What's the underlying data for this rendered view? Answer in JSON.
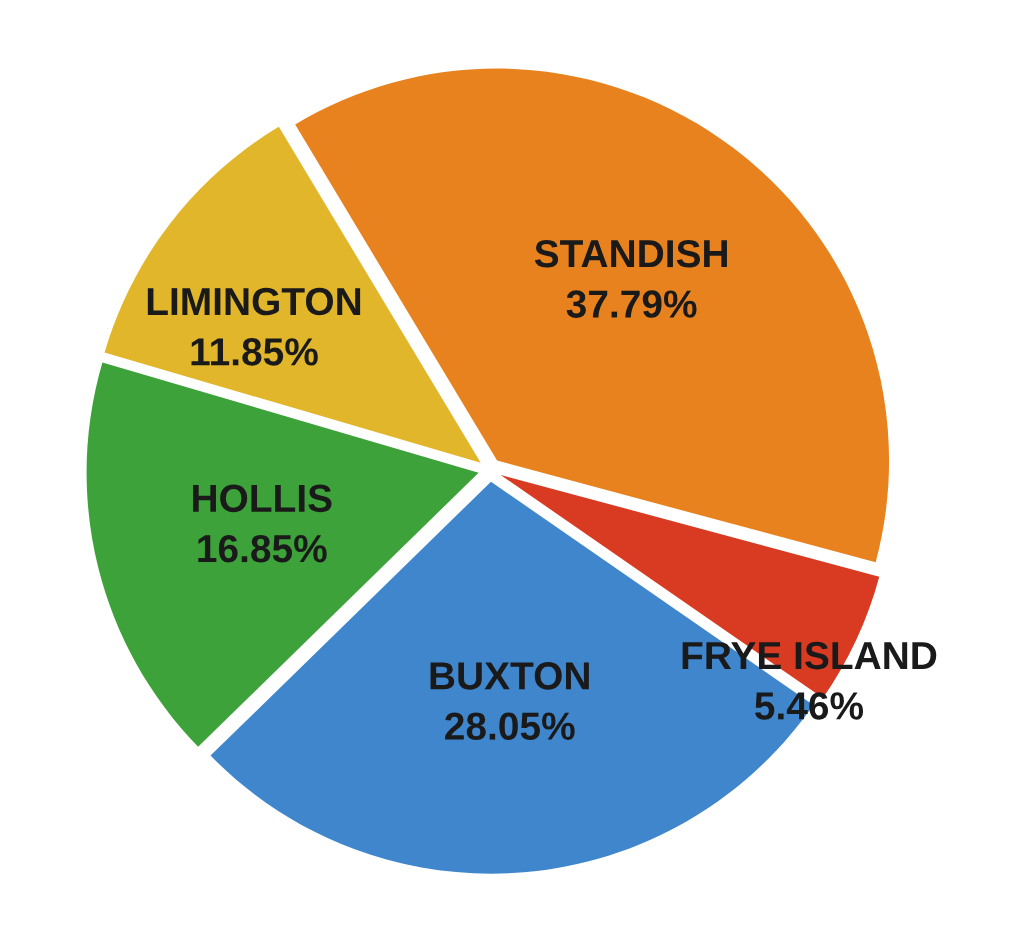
{
  "chart_data": {
    "type": "pie",
    "categories": [
      "STANDISH",
      "FRYE ISLAND",
      "BUXTON",
      "HOLLIS",
      "LIMINGTON"
    ],
    "values": [
      37.79,
      5.46,
      28.05,
      16.85,
      11.85
    ],
    "value_labels": [
      "37.79%",
      "5.46%",
      "28.05%",
      "16.85%",
      "11.85%"
    ],
    "colors": [
      "#e8821e",
      "#d93a22",
      "#3f86cc",
      "#3da23a",
      "#e2b62a"
    ]
  }
}
